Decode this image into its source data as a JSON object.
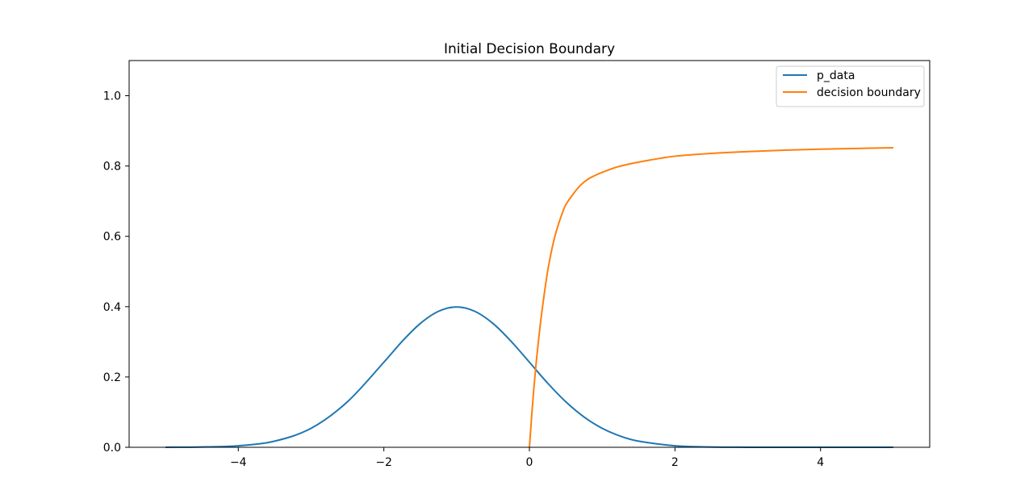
{
  "chart_data": {
    "type": "line",
    "title": "Initial Decision Boundary",
    "xlabel": "",
    "ylabel": "",
    "xlim": [
      -5.5,
      5.5
    ],
    "ylim": [
      0,
      1.1
    ],
    "xticks": [
      -4,
      -2,
      0,
      2,
      4
    ],
    "xtick_labels": [
      "−4",
      "−2",
      "0",
      "2",
      "4"
    ],
    "yticks": [
      0.0,
      0.2,
      0.4,
      0.6,
      0.8,
      1.0
    ],
    "ytick_labels": [
      "0.0",
      "0.2",
      "0.4",
      "0.6",
      "0.8",
      "1.0"
    ],
    "grid": false,
    "legend_position": "top-right",
    "series": [
      {
        "name": "p_data",
        "color": "#1f77b4",
        "x": [
          -5.0,
          -4.5,
          -4.0,
          -3.5,
          -3.0,
          -2.5,
          -2.0,
          -1.75,
          -1.5,
          -1.25,
          -1.0,
          -0.75,
          -0.5,
          -0.25,
          0.0,
          0.25,
          0.5,
          0.75,
          1.0,
          1.25,
          1.5,
          2.0,
          2.5,
          3.0,
          3.5,
          4.0,
          4.5,
          5.0
        ],
        "y": [
          0.0001,
          0.0009,
          0.0044,
          0.0175,
          0.054,
          0.1295,
          0.242,
          0.3011,
          0.3521,
          0.3867,
          0.3989,
          0.3867,
          0.3521,
          0.3011,
          0.242,
          0.1826,
          0.1295,
          0.0863,
          0.054,
          0.0317,
          0.0175,
          0.0044,
          0.0009,
          0.0001,
          0.0,
          0.0,
          0.0,
          0.0
        ]
      },
      {
        "name": "decision boundary",
        "color": "#ff7f0e",
        "x": [
          0.0,
          0.05,
          0.1,
          0.15,
          0.2,
          0.25,
          0.3,
          0.35,
          0.4,
          0.45,
          0.5,
          0.6,
          0.7,
          0.8,
          0.9,
          1.0,
          1.2,
          1.4,
          1.6,
          1.8,
          2.0,
          2.5,
          3.0,
          3.5,
          4.0,
          4.5,
          5.0
        ],
        "y": [
          0.0,
          0.14,
          0.255,
          0.35,
          0.43,
          0.5,
          0.555,
          0.6,
          0.635,
          0.665,
          0.69,
          0.72,
          0.745,
          0.762,
          0.773,
          0.782,
          0.797,
          0.807,
          0.815,
          0.822,
          0.828,
          0.836,
          0.841,
          0.845,
          0.848,
          0.85,
          0.852
        ]
      }
    ]
  }
}
